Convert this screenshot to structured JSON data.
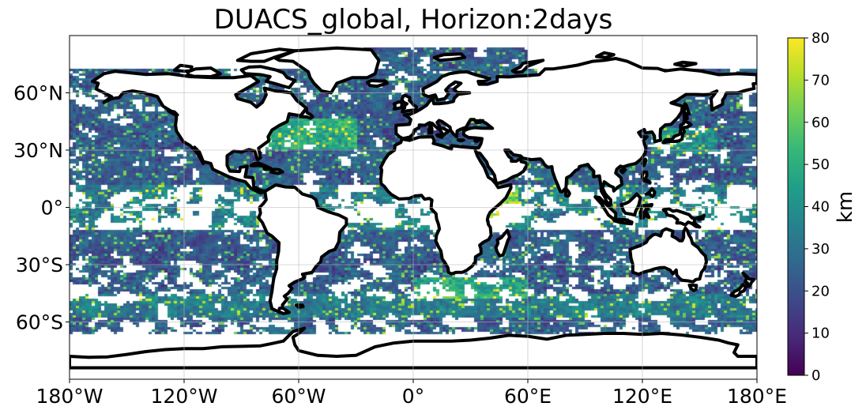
{
  "chart_data": {
    "type": "heatmap",
    "title": "DUACS_global, Horizon:2days",
    "projection": "plate-carree",
    "xlim": [
      -180,
      180
    ],
    "ylim": [
      -90,
      90
    ],
    "x_ticks": [
      {
        "value": -180,
        "label": "180°W"
      },
      {
        "value": -120,
        "label": "120°W"
      },
      {
        "value": -60,
        "label": "60°W"
      },
      {
        "value": 0,
        "label": "0°"
      },
      {
        "value": 60,
        "label": "60°E"
      },
      {
        "value": 120,
        "label": "120°E"
      },
      {
        "value": 180,
        "label": "180°E"
      }
    ],
    "y_ticks": [
      {
        "value": 60,
        "label": "60°N"
      },
      {
        "value": 30,
        "label": "30°N"
      },
      {
        "value": 0,
        "label": "0°"
      },
      {
        "value": -30,
        "label": "30°S"
      },
      {
        "value": -60,
        "label": "60°S"
      }
    ],
    "grid": true,
    "colormap": "viridis",
    "colorbar": {
      "label": "km",
      "min": 0,
      "max": 80,
      "ticks": [
        "0",
        "10",
        "20",
        "30",
        "40",
        "50",
        "60",
        "70",
        "80"
      ],
      "colors": [
        "#440154",
        "#482878",
        "#3e4989",
        "#31688e",
        "#26828e",
        "#1f9e89",
        "#35b779",
        "#6ece58",
        "#b5de2b",
        "#fde725"
      ]
    },
    "colors": {
      "land": "#ffffff",
      "coastline": "#000000",
      "missing_ocean": "#ffffff"
    }
  }
}
